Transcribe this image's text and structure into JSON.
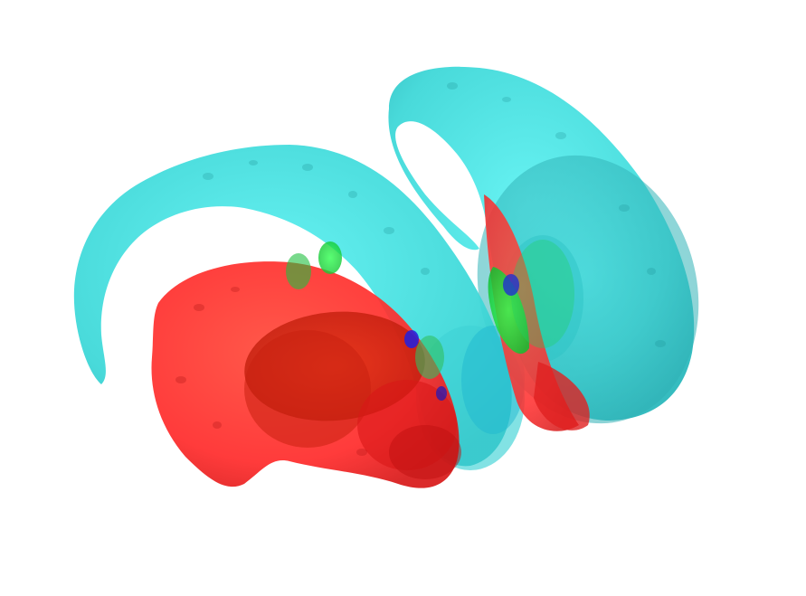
{
  "scene": {
    "background": "#ffffff",
    "structures": [
      {
        "key": "left-caudate",
        "color": "#40e0e0",
        "opacity": 0.95
      },
      {
        "key": "right-caudate",
        "color": "#40d8d8",
        "opacity": 0.9
      },
      {
        "key": "left-putamen",
        "color": "#ff2020",
        "opacity": 0.88
      },
      {
        "key": "right-putamen",
        "color": "#ff2020",
        "opacity": 0.85
      },
      {
        "key": "thalamus",
        "color": "#e01818",
        "opacity": 0.7
      },
      {
        "key": "pallidum",
        "color": "#00e040",
        "opacity": 0.85
      },
      {
        "key": "accumbens",
        "color": "#2020e0",
        "opacity": 0.85
      }
    ]
  }
}
